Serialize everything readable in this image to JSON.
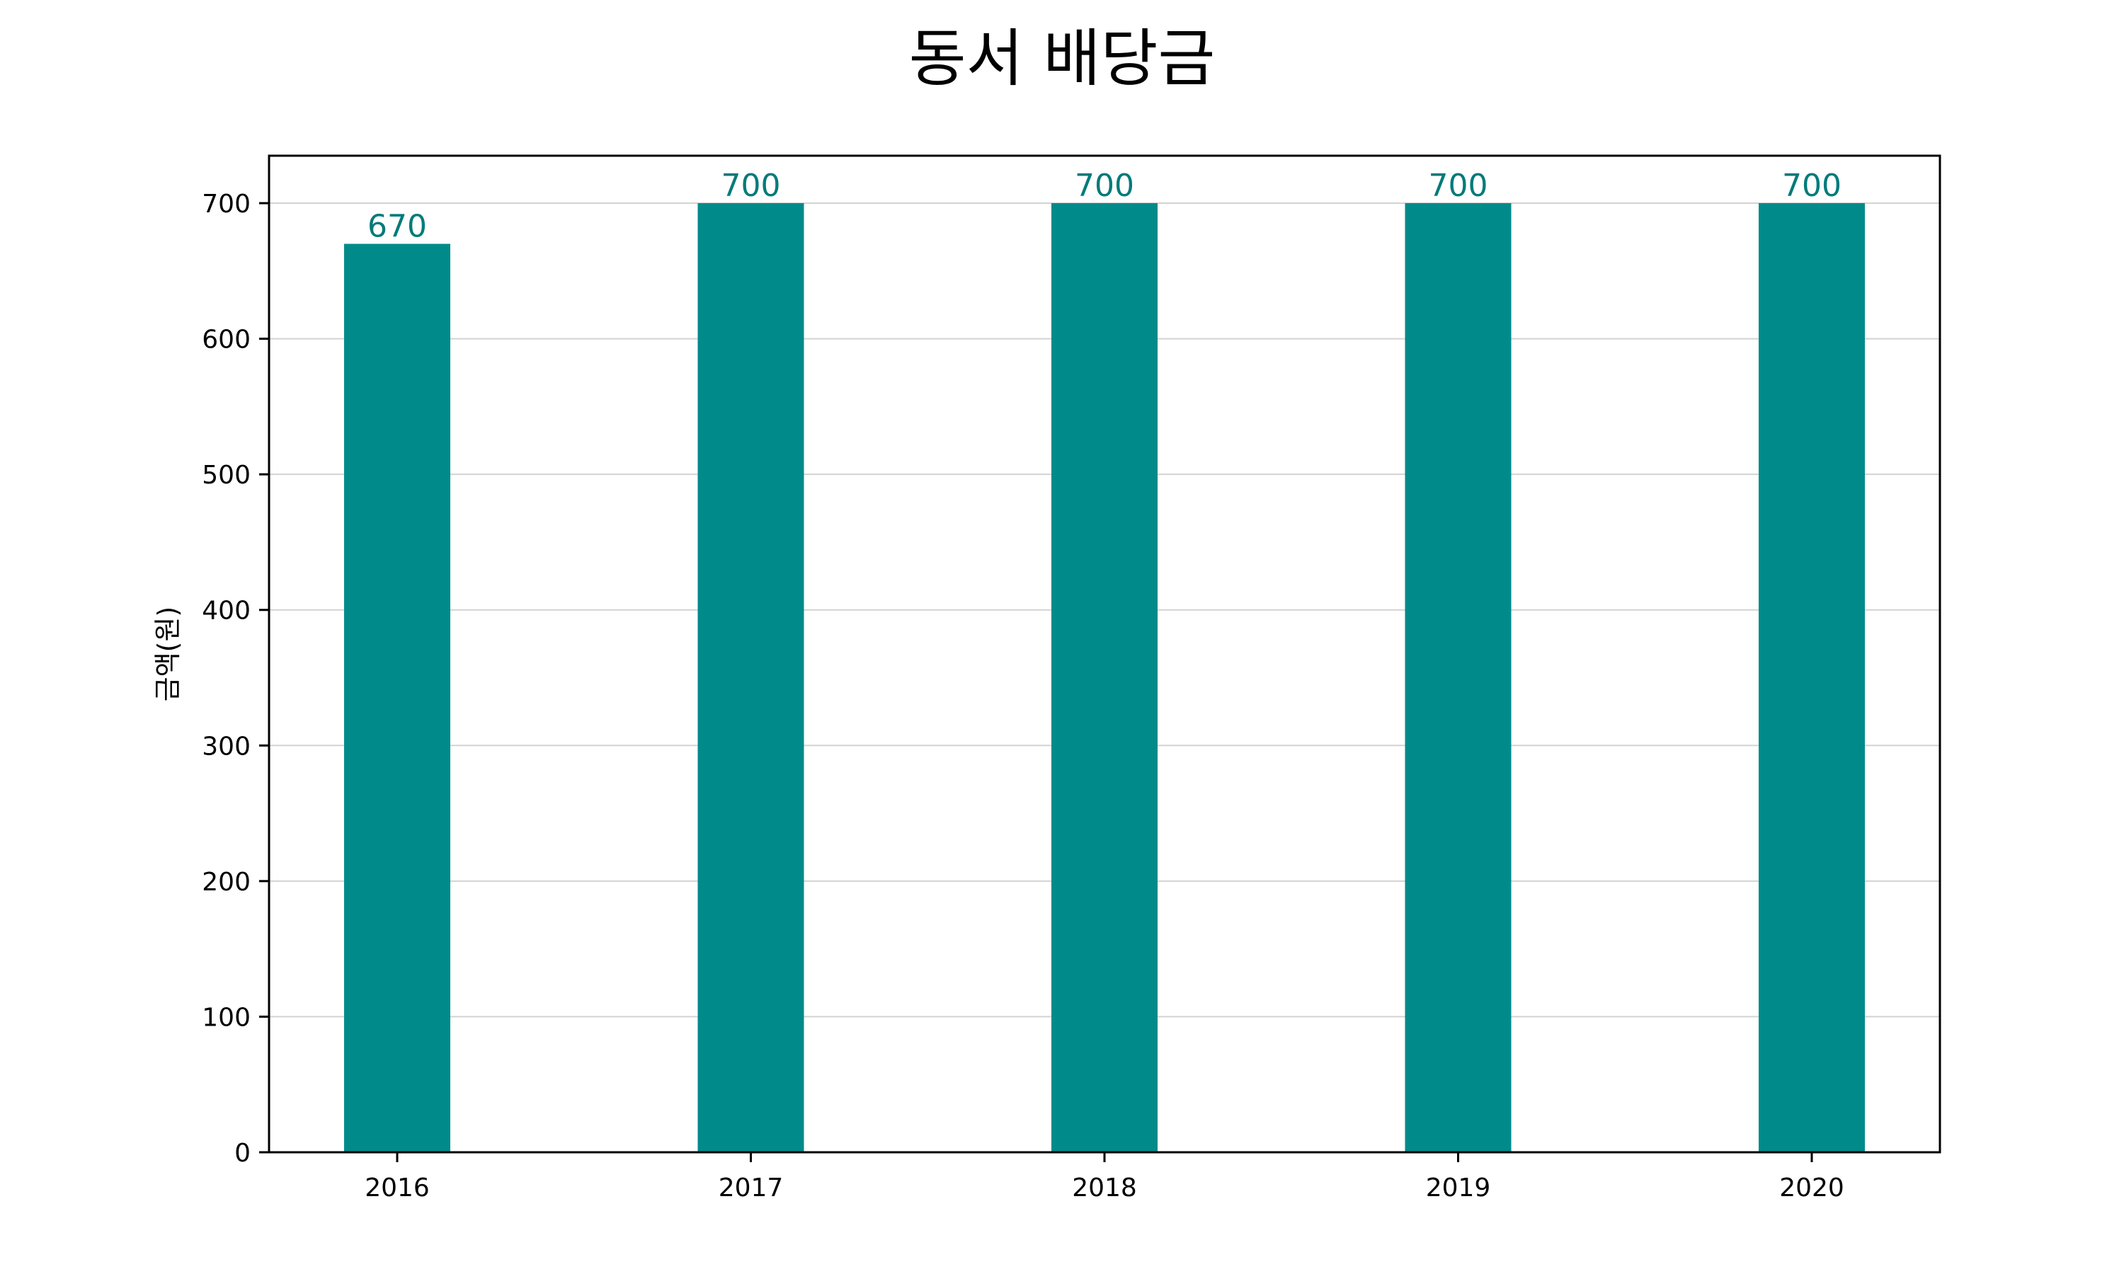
{
  "chart_data": {
    "type": "bar",
    "title": "동서 배당금",
    "xlabel": "",
    "ylabel": "금액(원)",
    "categories": [
      "2016",
      "2017",
      "2018",
      "2019",
      "2020"
    ],
    "values": [
      670,
      700,
      700,
      700,
      700
    ],
    "data_labels": [
      "670",
      "700",
      "700",
      "700",
      "700"
    ],
    "ylim": [
      0,
      735
    ],
    "yticks": [
      0,
      100,
      200,
      300,
      400,
      500,
      600,
      700
    ],
    "grid": "horizontal",
    "bar_color": "#008b8a",
    "label_color": "#007b7a"
  }
}
